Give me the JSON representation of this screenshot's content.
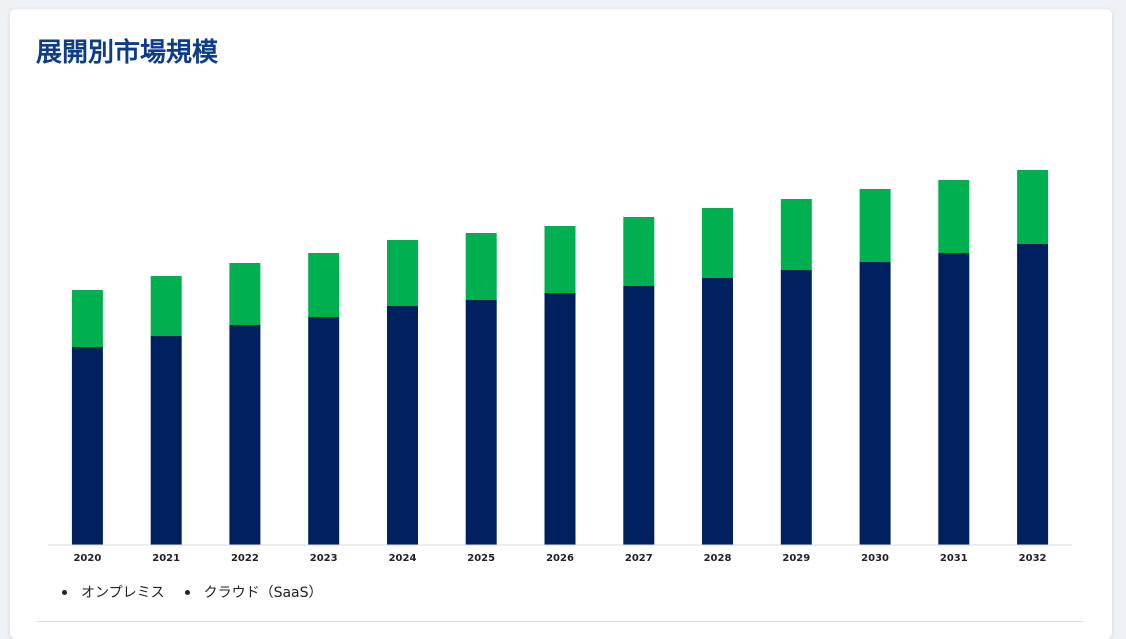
{
  "title": "展開別市場規模",
  "colors": {
    "onpremise": "#00205f",
    "cloud": "#00b050",
    "title": "#0d3d86"
  },
  "chart_data": {
    "type": "bar",
    "stacked": true,
    "categories": [
      "2020",
      "2021",
      "2022",
      "2023",
      "2024",
      "2025",
      "2026",
      "2027",
      "2028",
      "2029",
      "2030",
      "2031",
      "2032"
    ],
    "series": [
      {
        "name": "オンプレミス",
        "color": "#00205f",
        "values": [
          198,
          209,
          220,
          228,
          239,
          245,
          252,
          259,
          267,
          275,
          283,
          292,
          301
        ]
      },
      {
        "name": "クラウド（SaaS）",
        "color": "#00b050",
        "values": [
          57,
          60,
          62,
          64,
          66,
          67,
          67,
          69,
          70,
          71,
          73,
          73,
          74
        ]
      }
    ],
    "ylim": [
      0,
      380
    ],
    "grid": false,
    "y_axis_visible": false,
    "legend_position": "bottom-left"
  }
}
